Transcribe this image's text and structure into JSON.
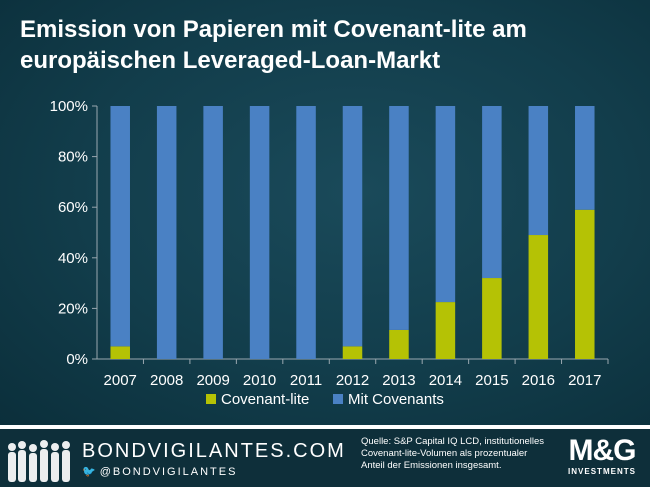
{
  "title": "Emission von Papieren mit Covenant-lite am europäischen Leveraged-Loan-Markt",
  "colors": {
    "covenant_lite": "#b5c205",
    "mit_covenants": "#4a81c4",
    "text": "#ffffff",
    "axis": "#9aa8b0"
  },
  "chart_data": {
    "type": "bar",
    "stacked": true,
    "categories": [
      "2007",
      "2008",
      "2009",
      "2010",
      "2011",
      "2012",
      "2013",
      "2014",
      "2015",
      "2016",
      "2017"
    ],
    "series": [
      {
        "name": "Covenant-lite",
        "values": [
          5,
          0,
          0,
          0,
          0,
          5,
          11.5,
          22.5,
          32,
          49,
          59
        ]
      },
      {
        "name": "Mit Covenants",
        "values": [
          95,
          100,
          100,
          100,
          100,
          95,
          88.5,
          77.5,
          68,
          51,
          41
        ]
      }
    ],
    "ylim": [
      0,
      100
    ],
    "yticks": [
      0,
      20,
      40,
      60,
      80,
      100
    ],
    "ytick_labels": [
      "0%",
      "20%",
      "40%",
      "60%",
      "80%",
      "100%"
    ],
    "xlabel": "",
    "ylabel": "",
    "legend_position": "bottom",
    "grid": false
  },
  "footer": {
    "brand": "BONDVIGILANTES.COM",
    "handle": "@BONDVIGILANTES",
    "source_text": "Quelle: S&P Capital IQ LCD, institutionelles Covenant-lite-Volumen als prozentualer Anteil der Emissionen insgesamt.",
    "logo_main": "M&G",
    "logo_sub": "INVESTMENTS"
  }
}
